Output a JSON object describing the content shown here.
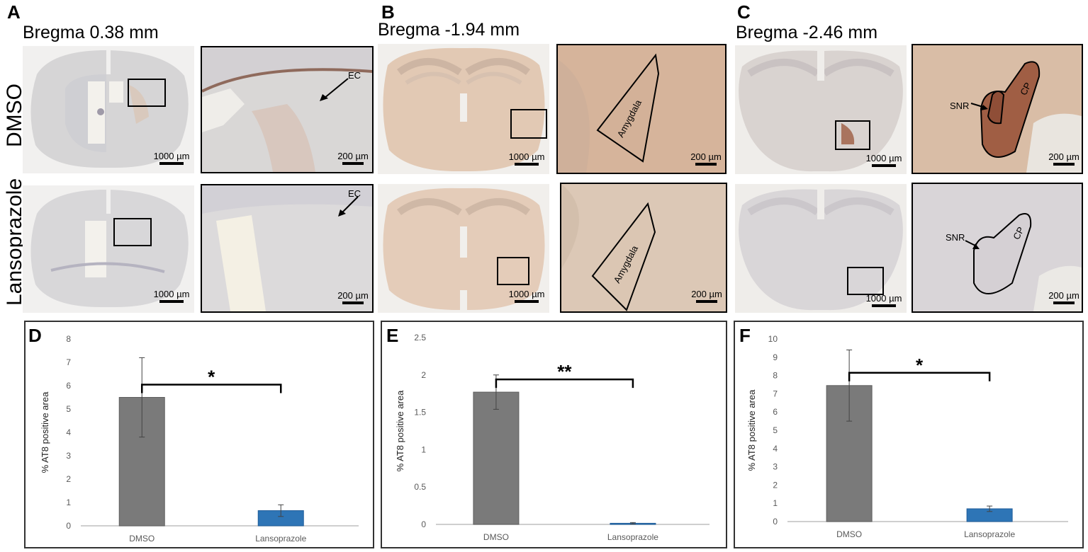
{
  "panels": {
    "A": {
      "letter": "A",
      "bregma": "Bregma 0.38 mm"
    },
    "B": {
      "letter": "B",
      "bregma": "Bregma -1.94 mm"
    },
    "C": {
      "letter": "C",
      "bregma": "Bregma -2.46 mm"
    }
  },
  "rows": {
    "top": "DMSO",
    "bottom": "Lansoprazole"
  },
  "scalebars": {
    "overview": "1000 µm",
    "zoom": "200 µm"
  },
  "annotations": {
    "ec": "EC",
    "amygdala": "Amygdala",
    "snr": "SNR",
    "cp": "CP"
  },
  "colors": {
    "dmso_bar": "#7a7a7a",
    "lanso_bar": "#2e75b6",
    "tissue_grey": "#d8d6d4",
    "tissue_brown": "#d7b79c"
  },
  "chart_data": [
    {
      "letter": "D",
      "type": "bar",
      "categories": [
        "DMSO",
        "Lansoprazole"
      ],
      "values": [
        5.5,
        0.65
      ],
      "errors": [
        1.7,
        0.25
      ],
      "ylabel": "% AT8 positive area",
      "ylim": [
        0,
        8
      ],
      "yticks": [
        "0",
        "1",
        "2",
        "3",
        "4",
        "5",
        "6",
        "7",
        "8"
      ],
      "significance": "*"
    },
    {
      "letter": "E",
      "type": "bar",
      "categories": [
        "DMSO",
        "Lansoprazole"
      ],
      "values": [
        1.77,
        0.015
      ],
      "errors": [
        0.23,
        0.01
      ],
      "ylabel": "% AT8 positive area",
      "ylim": [
        0,
        2.5
      ],
      "yticks": [
        "0",
        "0.5",
        "1",
        "1.5",
        "2",
        "2.5"
      ],
      "significance": "**"
    },
    {
      "letter": "F",
      "type": "bar",
      "categories": [
        "DMSO",
        "Lansoprazole"
      ],
      "values": [
        7.45,
        0.7
      ],
      "errors": [
        1.95,
        0.15
      ],
      "ylabel": "% AT8 positive area",
      "ylim": [
        0,
        10
      ],
      "yticks": [
        "0",
        "1",
        "2",
        "3",
        "4",
        "5",
        "6",
        "7",
        "8",
        "9",
        "10"
      ],
      "significance": "*"
    }
  ]
}
